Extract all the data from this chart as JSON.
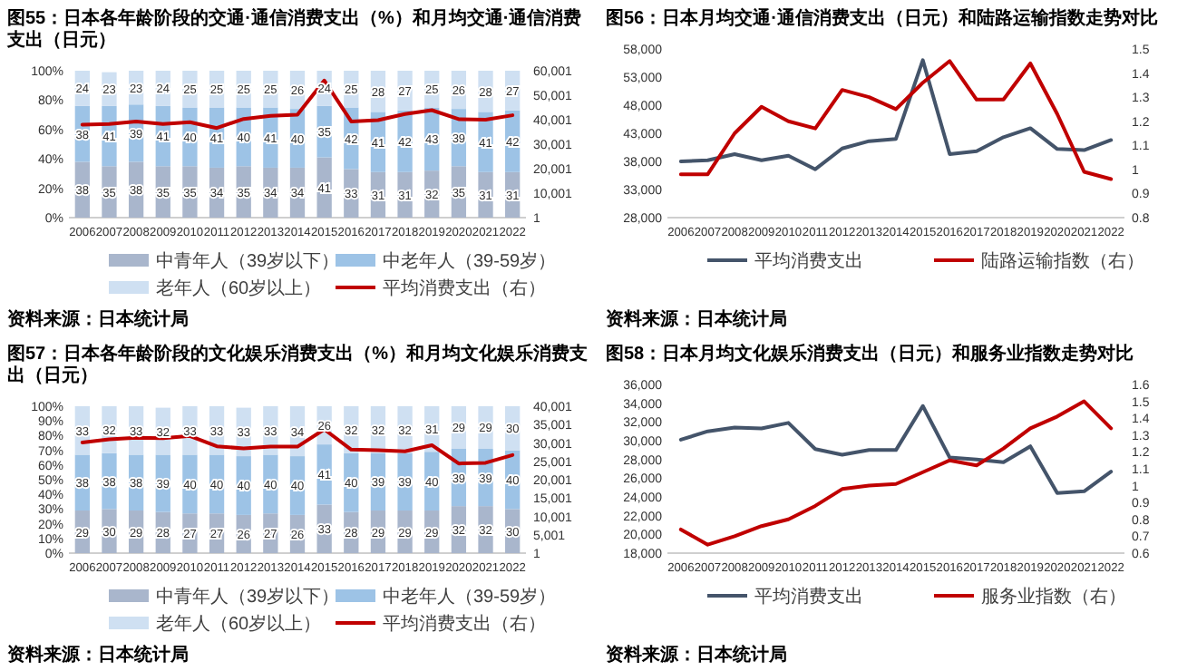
{
  "chart_data": [
    {
      "type": "bar",
      "title": "图55：日本各年龄阶段的交通·通信消费支出（%）和月均交通·通信消费支出（日元）",
      "categories": [
        "2006",
        "2007",
        "2008",
        "2009",
        "2010",
        "2011",
        "2012",
        "2013",
        "2014",
        "2015",
        "2016",
        "2017",
        "2018",
        "2019",
        "2020",
        "2021",
        "2022"
      ],
      "stacked": true,
      "legend": "bottom",
      "ylim": [
        0,
        100
      ],
      "yticks": [
        {
          "value": 0,
          "label": "0%"
        },
        {
          "value": 20,
          "label": "20%"
        },
        {
          "value": 40,
          "label": "40%"
        },
        {
          "value": 60,
          "label": "60%"
        },
        {
          "value": 80,
          "label": "80%"
        },
        {
          "value": 100,
          "label": "100%"
        }
      ],
      "y2lim": [
        1,
        60001
      ],
      "y2ticks": [
        1,
        {
          "value": 10001,
          "label": "10,001"
        },
        {
          "value": 20001,
          "label": "20,001"
        },
        {
          "value": 30001,
          "label": "30,001"
        },
        {
          "value": 40001,
          "label": "40,001"
        },
        {
          "value": 50001,
          "label": "50,001"
        },
        {
          "value": 60001,
          "label": "60,001"
        }
      ],
      "series": [
        {
          "name": "中青年人（39岁以下）",
          "color": "#a9b6cc",
          "values": [
            38,
            35,
            38,
            35,
            35,
            34,
            35,
            34,
            34,
            41,
            33,
            31,
            31,
            32,
            35,
            31,
            31
          ],
          "value_labels": [
            "38",
            "35",
            "38",
            "35",
            "35",
            "34",
            "35",
            "34",
            "34",
            "41",
            "33",
            "31",
            "31",
            "32",
            "35",
            "31",
            "31"
          ]
        },
        {
          "name": "中老年人（39-59岁）",
          "color": "#9dc3e6",
          "values": [
            38,
            41,
            39,
            41,
            40,
            41,
            40,
            41,
            40,
            35,
            42,
            41,
            42,
            43,
            39,
            41,
            42
          ],
          "value_labels": [
            "38",
            "41",
            "39",
            "41",
            "40",
            "41",
            "40",
            "41",
            "40",
            "35",
            "42",
            "41",
            "42",
            "43",
            "39",
            "41",
            "42"
          ]
        },
        {
          "name": "老年人（60岁以上）",
          "color": "#cfe0f2",
          "values": [
            24,
            23,
            23,
            24,
            25,
            25,
            25,
            25,
            26,
            24,
            25,
            28,
            27,
            25,
            26,
            28,
            27
          ],
          "value_labels": [
            "24",
            "23",
            "23",
            "24",
            "25",
            "25",
            "25",
            "25",
            "26",
            "24",
            "25",
            "28",
            "27",
            "25",
            "26",
            "28",
            "27"
          ]
        },
        {
          "name": "平均消费支出（右）",
          "type": "line",
          "axis": "y2",
          "color": "#c00000",
          "values": [
            38000,
            38200,
            39300,
            38200,
            39000,
            36600,
            40300,
            41600,
            42000,
            56000,
            39300,
            39800,
            42300,
            43900,
            40200,
            40000,
            41800
          ]
        }
      ],
      "annotations": [
        "资料来源：日本统计局"
      ]
    },
    {
      "type": "line",
      "title": "图56：日本月均交通·通信消费支出（日元）和陆路运输指数走势对比",
      "categories": [
        "2006",
        "2007",
        "2008",
        "2009",
        "2010",
        "2011",
        "2012",
        "2013",
        "2014",
        "2015",
        "2016",
        "2017",
        "2018",
        "2019",
        "2020",
        "2021",
        "2022"
      ],
      "legend": "bottom",
      "ylim": [
        28000,
        58000
      ],
      "yticks": [
        {
          "value": 28000,
          "label": "28,000"
        },
        {
          "value": 33000,
          "label": "33,000"
        },
        {
          "value": 38000,
          "label": "38,000"
        },
        {
          "value": 43000,
          "label": "43,000"
        },
        {
          "value": 48000,
          "label": "48,000"
        },
        {
          "value": 53000,
          "label": "53,000"
        },
        {
          "value": 58000,
          "label": "58,000"
        }
      ],
      "y2lim": [
        0.8,
        1.5
      ],
      "y2ticks": [
        0.8,
        0.9,
        1,
        1.1,
        1.2,
        1.3,
        1.4,
        1.5
      ],
      "series": [
        {
          "name": "平均消费支出",
          "color": "#44546a",
          "values": [
            38000,
            38200,
            39300,
            38200,
            39000,
            36600,
            40300,
            41600,
            42000,
            56000,
            39300,
            39800,
            42300,
            43900,
            40200,
            40000,
            41800
          ]
        },
        {
          "name": "陆路运输指数（右）",
          "axis": "y2",
          "color": "#c00000",
          "values": [
            0.98,
            0.98,
            1.15,
            1.26,
            1.2,
            1.17,
            1.33,
            1.3,
            1.25,
            1.36,
            1.45,
            1.29,
            1.29,
            1.44,
            1.23,
            0.99,
            0.96
          ]
        }
      ],
      "annotations": [
        "资料来源：日本统计局"
      ]
    },
    {
      "type": "bar",
      "title": "图57：日本各年龄阶段的文化娱乐消费支出（%）和月均文化娱乐消费支出（日元）",
      "categories": [
        "2006",
        "2007",
        "2008",
        "2009",
        "2010",
        "2011",
        "2012",
        "2013",
        "2014",
        "2015",
        "2016",
        "2017",
        "2018",
        "2019",
        "2020",
        "2021",
        "2022"
      ],
      "stacked": true,
      "legend": "bottom",
      "ylim": [
        0,
        100
      ],
      "yticks": [
        {
          "value": 0,
          "label": "0%"
        },
        {
          "value": 10,
          "label": "10%"
        },
        {
          "value": 20,
          "label": "20%"
        },
        {
          "value": 30,
          "label": "30%"
        },
        {
          "value": 40,
          "label": "40%"
        },
        {
          "value": 50,
          "label": "50%"
        },
        {
          "value": 60,
          "label": "60%"
        },
        {
          "value": 70,
          "label": "70%"
        },
        {
          "value": 80,
          "label": "80%"
        },
        {
          "value": 90,
          "label": "90%"
        },
        {
          "value": 100,
          "label": "100%"
        }
      ],
      "y2lim": [
        1,
        40001
      ],
      "y2ticks": [
        1,
        {
          "value": 5001,
          "label": "5,001"
        },
        {
          "value": 10001,
          "label": "10,001"
        },
        {
          "value": 15001,
          "label": "15,001"
        },
        {
          "value": 20001,
          "label": "20,001"
        },
        {
          "value": 25001,
          "label": "25,001"
        },
        {
          "value": 30001,
          "label": "30,001"
        },
        {
          "value": 35001,
          "label": "35,001"
        },
        {
          "value": 40001,
          "label": "40,001"
        }
      ],
      "series": [
        {
          "name": "中青年人（39岁以下）",
          "color": "#a9b6cc",
          "values": [
            29,
            30,
            29,
            28,
            27,
            27,
            26,
            27,
            26,
            33,
            28,
            29,
            29,
            29,
            32,
            32,
            30
          ],
          "value_labels": [
            "29",
            "30",
            "29",
            "28",
            "27",
            "27",
            "26",
            "27",
            "26",
            "33",
            "28",
            "29",
            "29",
            "29",
            "32",
            "32",
            "30"
          ]
        },
        {
          "name": "中老年人（39-59岁）",
          "color": "#9dc3e6",
          "values": [
            38,
            38,
            38,
            39,
            40,
            40,
            40,
            40,
            40,
            41,
            40,
            39,
            39,
            40,
            39,
            39,
            40
          ],
          "value_labels": [
            "38",
            "38",
            "38",
            "39",
            "40",
            "40",
            "40",
            "40",
            "40",
            "41",
            "40",
            "39",
            "39",
            "40",
            "39",
            "39",
            "40"
          ]
        },
        {
          "name": "老年人（60岁以上）",
          "color": "#cfe0f2",
          "values": [
            33,
            32,
            33,
            32,
            33,
            33,
            33,
            33,
            34,
            26,
            32,
            32,
            32,
            31,
            29,
            29,
            30
          ],
          "value_labels": [
            "33",
            "32",
            "33",
            "32",
            "33",
            "33",
            "33",
            "33",
            "34",
            "26",
            "32",
            "32",
            "32",
            "31",
            "29",
            "29",
            "30"
          ]
        },
        {
          "name": "平均消费支出（右）",
          "type": "line",
          "axis": "y2",
          "color": "#c00000",
          "values": [
            30100,
            31000,
            31400,
            31300,
            31900,
            29100,
            28500,
            29000,
            29000,
            33700,
            28200,
            28000,
            27700,
            29400,
            24400,
            24600,
            26700
          ]
        }
      ],
      "annotations": [
        "资料来源：日本统计局"
      ]
    },
    {
      "type": "line",
      "title": "图58：日本月均文化娱乐消费支出（日元）和服务业指数走势对比",
      "categories": [
        "2006",
        "2007",
        "2008",
        "2009",
        "2010",
        "2011",
        "2012",
        "2013",
        "2014",
        "2015",
        "2016",
        "2017",
        "2018",
        "2019",
        "2020",
        "2021",
        "2022"
      ],
      "legend": "bottom",
      "ylim": [
        18000,
        36000
      ],
      "yticks": [
        {
          "value": 18000,
          "label": "18,000"
        },
        {
          "value": 20000,
          "label": "20,000"
        },
        {
          "value": 22000,
          "label": "22,000"
        },
        {
          "value": 24000,
          "label": "24,000"
        },
        {
          "value": 26000,
          "label": "26,000"
        },
        {
          "value": 28000,
          "label": "28,000"
        },
        {
          "value": 30000,
          "label": "30,000"
        },
        {
          "value": 32000,
          "label": "32,000"
        },
        {
          "value": 34000,
          "label": "34,000"
        },
        {
          "value": 36000,
          "label": "36,000"
        }
      ],
      "y2lim": [
        0.6,
        1.6
      ],
      "y2ticks": [
        0.6,
        0.7,
        0.8,
        0.9,
        1,
        1.1,
        1.2,
        1.3,
        1.4,
        1.5,
        1.6
      ],
      "series": [
        {
          "name": "平均消费支出",
          "color": "#44546a",
          "values": [
            30100,
            31000,
            31400,
            31300,
            31900,
            29100,
            28500,
            29000,
            29000,
            33700,
            28200,
            28000,
            27700,
            29400,
            24400,
            24600,
            26700
          ]
        },
        {
          "name": "服务业指数（右）",
          "axis": "y2",
          "color": "#c00000",
          "values": [
            0.74,
            0.65,
            0.7,
            0.76,
            0.8,
            0.88,
            0.98,
            1,
            1.01,
            1.08,
            1.15,
            1.12,
            1.22,
            1.34,
            1.41,
            1.5,
            1.34
          ]
        }
      ],
      "annotations": [
        "资料来源：日本统计局"
      ]
    }
  ]
}
